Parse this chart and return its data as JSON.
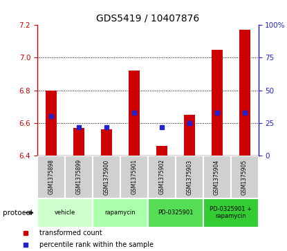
{
  "title": "GDS5419 / 10407876",
  "samples": [
    "GSM1375898",
    "GSM1375899",
    "GSM1375900",
    "GSM1375901",
    "GSM1375902",
    "GSM1375903",
    "GSM1375904",
    "GSM1375905"
  ],
  "transformed_count": [
    6.8,
    6.57,
    6.56,
    6.92,
    6.46,
    6.65,
    7.05,
    7.17
  ],
  "percentile_rank": [
    30,
    22,
    22,
    33,
    22,
    25,
    33,
    33
  ],
  "ylim_left": [
    6.4,
    7.2
  ],
  "ylim_right": [
    0,
    100
  ],
  "yticks_left": [
    6.4,
    6.6,
    6.8,
    7.0,
    7.2
  ],
  "yticks_right": [
    0,
    25,
    50,
    75,
    100
  ],
  "ytick_labels_right": [
    "0",
    "25",
    "50",
    "75",
    "100%"
  ],
  "bar_color": "#cc0000",
  "dot_color": "#2222cc",
  "protocols": [
    {
      "label": "vehicle",
      "samples": [
        0,
        1
      ],
      "color": "#ccffcc"
    },
    {
      "label": "rapamycin",
      "samples": [
        2,
        3
      ],
      "color": "#aaffaa"
    },
    {
      "label": "PD-0325901",
      "samples": [
        4,
        5
      ],
      "color": "#55dd55"
    },
    {
      "label": "PD-0325901 +\nrapamycin",
      "samples": [
        6,
        7
      ],
      "color": "#33cc33"
    }
  ],
  "protocol_label": "protocol",
  "legend_red_label": "transformed count",
  "legend_blue_label": "percentile rank within the sample",
  "title_fontsize": 10,
  "tick_fontsize": 7.5,
  "bar_width": 0.4,
  "baseline": 6.4
}
